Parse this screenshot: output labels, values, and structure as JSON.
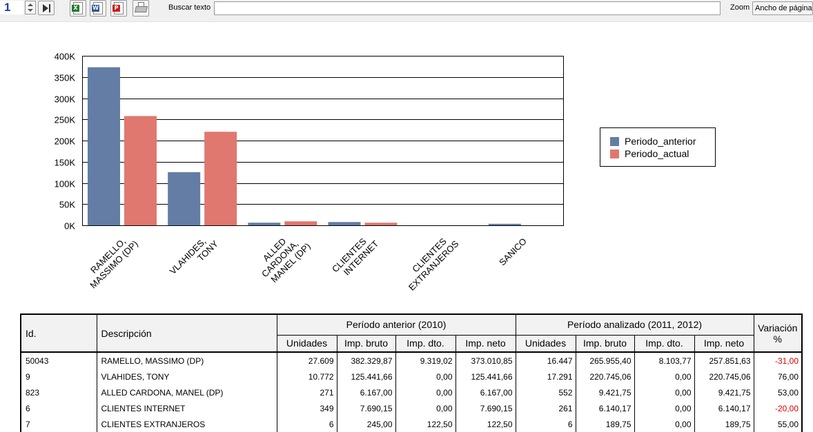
{
  "toolbar": {
    "page_number": "1",
    "buttons": {
      "spin": "spin-icon",
      "last_page": "last-page-icon",
      "excel": "excel-icon",
      "word": "word-icon",
      "pdf": "pdf-icon",
      "print": "printer-icon"
    },
    "search_label": "Buscar texto",
    "search_value": "",
    "zoom_label": "Zoom",
    "zoom_value": "Ancho de página"
  },
  "colors": {
    "periodo_anterior": "#647da4",
    "periodo_actual": "#e0786f",
    "negative": "#d40000"
  },
  "chart_data": {
    "type": "bar",
    "categories": [
      "RAMELLO, MASSIMO (DP)",
      "VLAHIDES, TONY",
      "ALLED CARDONA, MANEL (DP)",
      "CLIENTES INTERNET",
      "CLIENTES EXTRANJEROS",
      "SANICO"
    ],
    "category_label_lines": [
      [
        "RAMELLO,",
        "MASSIMO (DP)"
      ],
      [
        "VLAHIDES,",
        "TONY"
      ],
      [
        "ALLED",
        "CARDONA,",
        "MANEL (DP)"
      ],
      [
        "CLIENTES",
        "INTERNET"
      ],
      [
        "CLIENTES",
        "EXTRANJEROS"
      ],
      [
        "SANICO"
      ]
    ],
    "series": [
      {
        "name": "Periodo_anterior",
        "values": [
          373010.85,
          125441.66,
          6167.0,
          7690.15,
          122.5,
          3500
        ]
      },
      {
        "name": "Periodo_actual",
        "values": [
          257851.63,
          220745.06,
          9421.75,
          6140.17,
          189.75,
          0
        ]
      }
    ],
    "ylim": [
      0,
      400000
    ],
    "yticks": [
      0,
      50000,
      100000,
      150000,
      200000,
      250000,
      300000,
      350000,
      400000
    ],
    "ytick_labels": [
      "0K",
      "50K",
      "100K",
      "150K",
      "200K",
      "250K",
      "300K",
      "350K",
      "400K"
    ],
    "grid": true,
    "legend_position": "right"
  },
  "table": {
    "headers": {
      "id": "Id.",
      "descripcion": "Descripción",
      "periodo_anterior": "Período anterior (2010)",
      "periodo_analizado": "Período analizado (2011, 2012)",
      "variacion": "Variación %",
      "sub": [
        "Unidades",
        "Imp. bruto",
        "Imp. dto.",
        "Imp. neto"
      ]
    },
    "rows": [
      {
        "id": "50043",
        "desc": "RAMELLO, MASSIMO (DP)",
        "a_uni": "27.609",
        "a_bruto": "382.329,87",
        "a_dto": "9.319,02",
        "a_neto": "373.010,85",
        "b_uni": "16.447",
        "b_bruto": "265.955,40",
        "b_dto": "8.103,77",
        "b_neto": "257.851,63",
        "var": "-31,00"
      },
      {
        "id": "9",
        "desc": "VLAHIDES, TONY",
        "a_uni": "10.772",
        "a_bruto": "125.441,66",
        "a_dto": "0,00",
        "a_neto": "125.441,66",
        "b_uni": "17.291",
        "b_bruto": "220.745,06",
        "b_dto": "0,00",
        "b_neto": "220.745,06",
        "var": "76,00"
      },
      {
        "id": "823",
        "desc": "ALLED CARDONA, MANEL (DP)",
        "a_uni": "271",
        "a_bruto": "6.167,00",
        "a_dto": "0,00",
        "a_neto": "6.167,00",
        "b_uni": "552",
        "b_bruto": "9.421,75",
        "b_dto": "0,00",
        "b_neto": "9.421,75",
        "var": "53,00"
      },
      {
        "id": "6",
        "desc": "CLIENTES INTERNET",
        "a_uni": "349",
        "a_bruto": "7.690,15",
        "a_dto": "0,00",
        "a_neto": "7.690,15",
        "b_uni": "261",
        "b_bruto": "6.140,17",
        "b_dto": "0,00",
        "b_neto": "6.140,17",
        "var": "-20,00"
      },
      {
        "id": "7",
        "desc": "CLIENTES EXTRANJEROS",
        "a_uni": "6",
        "a_bruto": "245,00",
        "a_dto": "122,50",
        "a_neto": "122,50",
        "b_uni": "6",
        "b_bruto": "189,75",
        "b_dto": "0,00",
        "b_neto": "189,75",
        "var": "55,00"
      }
    ]
  }
}
